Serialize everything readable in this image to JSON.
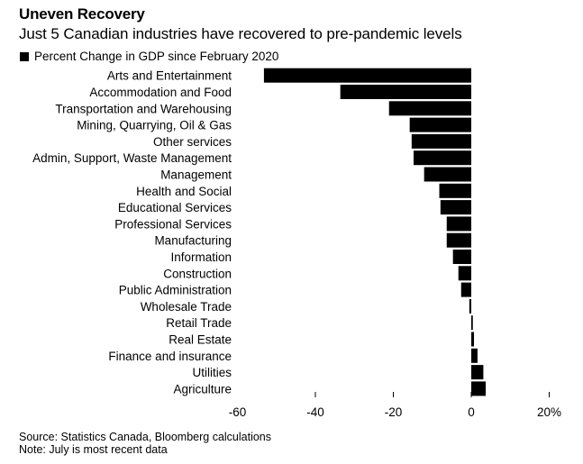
{
  "chart_data": {
    "type": "bar",
    "orientation": "horizontal",
    "title": "Uneven Recovery",
    "subtitle": "Just 5 Canadian industries have recovered to pre-pandemic levels",
    "legend": [
      {
        "name": "Percent Change in GDP since February 2020",
        "color": "#000000"
      }
    ],
    "legend_placement": "top-left",
    "categories": [
      "Arts and Entertainment",
      "Accommodation and Food",
      "Transportation and Warehousing",
      "Mining, Quarrying, Oil & Gas",
      "Other services",
      "Admin, Support, Waste Management",
      "Management",
      "Health and Social",
      "Educational Services",
      "Professional Services",
      "Manufacturing",
      "Information",
      "Construction",
      "Public Administration",
      "Wholesale Trade",
      "Retail Trade",
      "Real Estate",
      "Finance and insurance",
      "Utilities",
      "Agriculture"
    ],
    "series": [
      {
        "name": "Percent Change in GDP since February 2020",
        "values": [
          -53.2,
          -33.6,
          -21.1,
          -15.8,
          -15.3,
          -14.8,
          -12.1,
          -8.2,
          -7.9,
          -6.3,
          -6.3,
          -4.7,
          -3.3,
          -2.6,
          -0.5,
          0.4,
          0.7,
          1.6,
          3.1,
          3.7
        ]
      }
    ],
    "xlabel": "",
    "ylabel": "",
    "xlim": [
      -60,
      20
    ],
    "xticks": [
      -60,
      -40,
      -20,
      0,
      20
    ],
    "xtick_labels": [
      "-60",
      "-40",
      "-20",
      "0",
      "20%"
    ],
    "grid": false,
    "bar_color": "#000000"
  },
  "footer": {
    "source": "Source: Statistics Canada, Bloomberg calculations",
    "note": "Note: July is most recent data"
  }
}
